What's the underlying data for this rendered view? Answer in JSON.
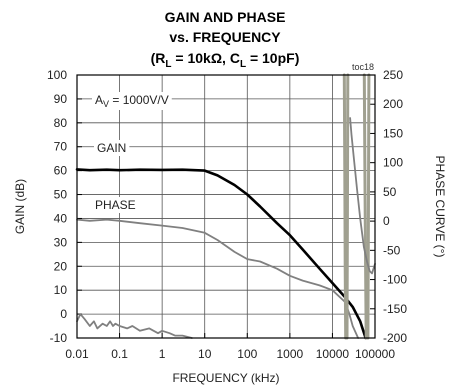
{
  "chart_data": {
    "type": "line",
    "title_lines": [
      "GAIN AND PHASE",
      "vs. FREQUENCY"
    ],
    "title_line3": {
      "open": "(R",
      "sub1": "L",
      "mid": " = 10kΩ, C",
      "sub2": "L",
      "close": " = 10pF)"
    },
    "tag": "toc18",
    "xlabel": "FREQUENCY (kHz)",
    "ylabel_left": "GAIN (dB)",
    "ylabel_right": "PHASE CURVE (°)",
    "x_scale": "log",
    "xlim": [
      0.01,
      100000
    ],
    "ylim_left": [
      -10,
      100
    ],
    "ylim_right": [
      -200,
      250
    ],
    "grid": true,
    "x_ticks": [
      0.01,
      0.1,
      1,
      10,
      100,
      1000,
      10000,
      100000
    ],
    "x_tick_labels": [
      "0.01",
      "0.1",
      "1",
      "10",
      "100",
      "1000",
      "10000",
      "100000"
    ],
    "y_ticks_left": [
      100,
      90,
      80,
      70,
      60,
      50,
      40,
      30,
      20,
      10,
      0,
      -10
    ],
    "y_tick_labels_left": [
      "100",
      "90",
      "80",
      "70",
      "60",
      "50",
      "40",
      "30",
      "20",
      "10",
      "0",
      "-10"
    ],
    "y_ticks_right": [
      250,
      200,
      150,
      100,
      50,
      0,
      -50,
      -100,
      -150,
      -200
    ],
    "y_tick_labels_right": [
      "250",
      "200",
      "150",
      "100",
      "50",
      "0",
      "-50",
      "-100",
      "-150",
      "-200"
    ],
    "annotations": {
      "av_prefix": "A",
      "av_sub": "V",
      "av_suffix": " = 1000V/V",
      "gain": "GAIN",
      "phase": "PHASE"
    },
    "series": [
      {
        "name": "GAIN",
        "axis": "left",
        "color": "#000000",
        "points": [
          [
            0.01,
            60.5
          ],
          [
            0.02,
            60.2
          ],
          [
            0.05,
            60.4
          ],
          [
            0.1,
            60.2
          ],
          [
            0.3,
            60.4
          ],
          [
            1,
            60.3
          ],
          [
            3,
            60.4
          ],
          [
            10,
            60
          ],
          [
            20,
            58
          ],
          [
            50,
            54
          ],
          [
            100,
            50
          ],
          [
            200,
            45
          ],
          [
            500,
            38
          ],
          [
            1000,
            33
          ],
          [
            2000,
            27
          ],
          [
            5000,
            19
          ],
          [
            10000,
            13
          ],
          [
            20000,
            7
          ],
          [
            30000,
            3
          ],
          [
            45000,
            -3
          ],
          [
            60000,
            -10
          ]
        ]
      },
      {
        "name": "PHASE",
        "axis": "left",
        "color": "#808080",
        "points": [
          [
            0.01,
            39.5
          ],
          [
            0.02,
            39
          ],
          [
            0.05,
            39.5
          ],
          [
            0.1,
            39
          ],
          [
            0.3,
            38
          ],
          [
            1,
            37
          ],
          [
            3,
            36
          ],
          [
            10,
            34
          ],
          [
            20,
            31
          ],
          [
            50,
            26
          ],
          [
            100,
            23
          ],
          [
            200,
            22
          ],
          [
            500,
            19
          ],
          [
            1000,
            16
          ],
          [
            2000,
            14
          ],
          [
            5000,
            12
          ],
          [
            10000,
            10
          ],
          [
            20000,
            5
          ],
          [
            25000,
            0
          ],
          [
            30000,
            -5
          ],
          [
            40000,
            -10
          ]
        ]
      },
      {
        "name": "GAIN (noise floor)",
        "axis": "left",
        "color": "#808080",
        "points": [
          [
            0.01,
            -3
          ],
          [
            0.012,
            0
          ],
          [
            0.015,
            -2
          ],
          [
            0.02,
            -5
          ],
          [
            0.025,
            -3
          ],
          [
            0.03,
            -6
          ],
          [
            0.04,
            -4
          ],
          [
            0.05,
            -5
          ],
          [
            0.06,
            -3
          ],
          [
            0.07,
            -5
          ],
          [
            0.08,
            -4
          ],
          [
            0.1,
            -5
          ],
          [
            0.15,
            -6
          ],
          [
            0.2,
            -5
          ],
          [
            0.3,
            -7
          ],
          [
            0.5,
            -6
          ],
          [
            0.8,
            -8
          ],
          [
            1,
            -7
          ],
          [
            1.5,
            -8
          ],
          [
            2,
            -9
          ],
          [
            3,
            -9
          ],
          [
            5,
            -10
          ]
        ]
      },
      {
        "name": "PHASE (wrap 1)",
        "axis": "left",
        "color": "#a0a090",
        "points": [
          [
            19000,
            100
          ],
          [
            19500,
            60
          ],
          [
            20000,
            20
          ],
          [
            20500,
            -10
          ]
        ]
      },
      {
        "name": "PHASE (wrap 2)",
        "axis": "left",
        "color": "#a0a090",
        "points": [
          [
            22000,
            -10
          ],
          [
            22500,
            40
          ],
          [
            23000,
            100
          ]
        ]
      },
      {
        "name": "PHASE (wrap 3)",
        "axis": "left",
        "color": "#a0a090",
        "points": [
          [
            56000,
            100
          ],
          [
            58000,
            60
          ],
          [
            60000,
            20
          ],
          [
            62000,
            -10
          ]
        ]
      },
      {
        "name": "PHASE (wrap 4)",
        "axis": "left",
        "color": "#a0a090",
        "points": [
          [
            68000,
            -10
          ],
          [
            70000,
            40
          ],
          [
            72000,
            100
          ]
        ]
      },
      {
        "name": "PHASE CURVE",
        "axis": "left",
        "color": "#808080",
        "points": [
          [
            26000,
            82
          ],
          [
            28000,
            75
          ],
          [
            32000,
            65
          ],
          [
            38000,
            52
          ],
          [
            45000,
            40
          ],
          [
            55000,
            28
          ],
          [
            65000,
            22
          ],
          [
            75000,
            18
          ],
          [
            85000,
            17
          ],
          [
            100000,
            21
          ]
        ]
      }
    ]
  }
}
